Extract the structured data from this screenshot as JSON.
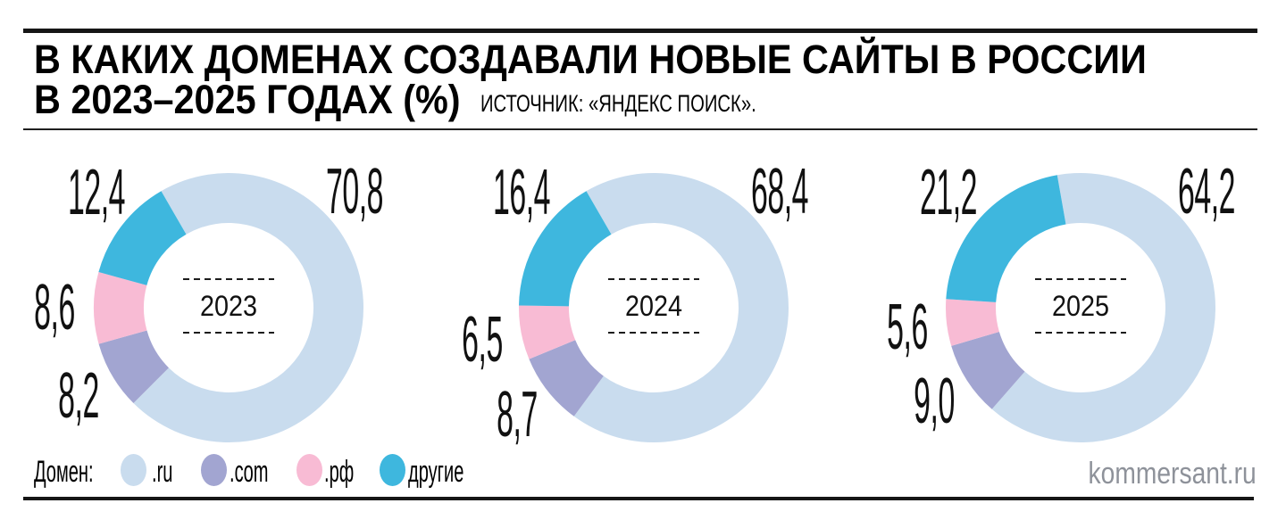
{
  "header": {
    "title_line1": "В КАКИХ ДОМЕНАХ СОЗДАВАЛИ НОВЫЕ САЙТЫ В РОССИИ",
    "title_line2": "В 2023–2025 ГОДАХ (%)",
    "source": "ИСТОЧНИК: «ЯНДЕКС ПОИСК»."
  },
  "legend": {
    "label": "Домен:",
    "items": [
      {
        "name": ".ru"
      },
      {
        "name": ".com"
      },
      {
        "name": ".рф"
      },
      {
        "name": "другие"
      }
    ]
  },
  "footer": {
    "brand": "kommersant.ru"
  },
  "chart_data": {
    "type": "pie",
    "variant": "donut",
    "unit": "%",
    "title": "В каких доменах создавали новые сайты в России в 2023–2025 годах (%)",
    "source": "«Яндекс Поиск»",
    "legend_position": "bottom",
    "categories": [
      ".ru",
      ".com",
      ".рф",
      "другие"
    ],
    "category_slugs": [
      "ru",
      "com",
      "rf",
      "other"
    ],
    "colors": [
      "#c9dcee",
      "#a2a5d1",
      "#f8bbd4",
      "#3eb7de"
    ],
    "charts": [
      {
        "center_label": "2023",
        "start_angle_deg": -30,
        "values": [
          70.8,
          8.2,
          8.6,
          12.4
        ]
      },
      {
        "center_label": "2024",
        "start_angle_deg": -30,
        "values": [
          68.4,
          8.7,
          6.5,
          16.4
        ]
      },
      {
        "center_label": "2025",
        "start_angle_deg": -10,
        "values": [
          64.2,
          9.0,
          5.6,
          21.2
        ]
      }
    ]
  }
}
